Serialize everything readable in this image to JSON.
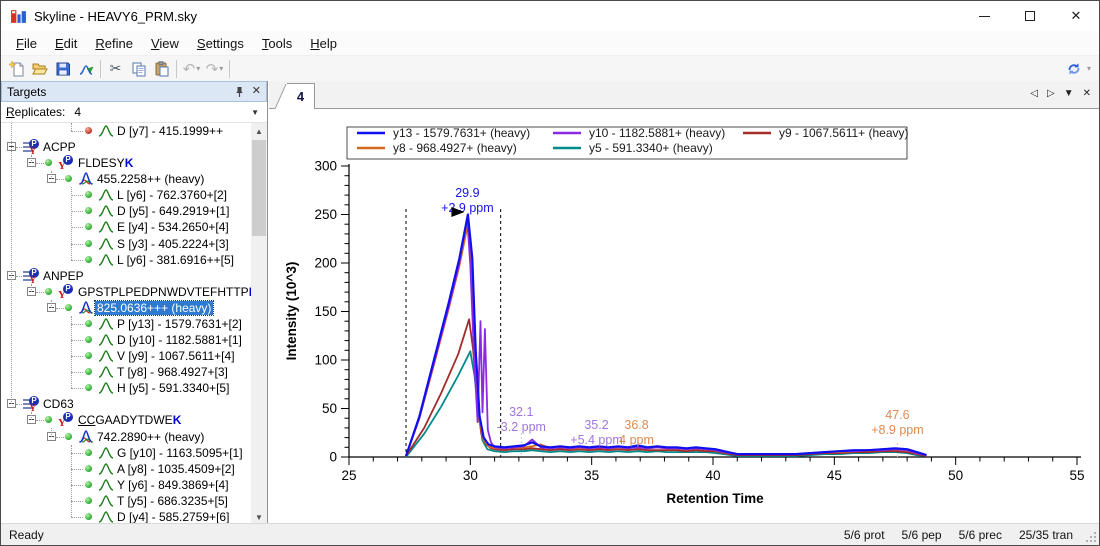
{
  "window": {
    "title": "Skyline - HEAVY6_PRM.sky"
  },
  "menu": {
    "items": [
      "File",
      "Edit",
      "Refine",
      "View",
      "Settings",
      "Tools",
      "Help"
    ]
  },
  "toolbar": {
    "buttons": [
      "new-document",
      "open-file",
      "save",
      "import-results",
      "sep",
      "cut",
      "copy",
      "paste",
      "sep",
      "undo",
      "redo",
      "sep"
    ],
    "right_button": "live-report"
  },
  "targets": {
    "title": "Targets",
    "replicates_label": "Replicates:",
    "replicates_value": "4",
    "tree": [
      {
        "level": 3,
        "type": "transition",
        "dot": "red",
        "label": "D [y7] - 415.1999++"
      },
      {
        "level": 0,
        "type": "protein",
        "label": "ACPP",
        "expander": true
      },
      {
        "level": 1,
        "type": "peptide",
        "dot": "green",
        "expander": true,
        "segments": [
          {
            "t": "FLDESY"
          },
          {
            "t": "K",
            "b": true
          }
        ]
      },
      {
        "level": 2,
        "type": "precursor",
        "dot": "green",
        "expander": true,
        "label": "455.2258++ (heavy)"
      },
      {
        "level": 3,
        "type": "transition",
        "dot": "green",
        "label": "L [y6] - 762.3760+[2]"
      },
      {
        "level": 3,
        "type": "transition",
        "dot": "green",
        "label": "D [y5] - 649.2919+[1]"
      },
      {
        "level": 3,
        "type": "transition",
        "dot": "green",
        "label": "E [y4] - 534.2650+[4]"
      },
      {
        "level": 3,
        "type": "transition",
        "dot": "green",
        "label": "S [y3] - 405.2224+[3]"
      },
      {
        "level": 3,
        "type": "transition",
        "dot": "green",
        "label": "L [y6] - 381.6916++[5]"
      },
      {
        "level": 0,
        "type": "protein",
        "label": "ANPEP",
        "expander": true
      },
      {
        "level": 1,
        "type": "peptide",
        "dot": "green",
        "expander": true,
        "segments": [
          {
            "t": "GPSTPLPEDPNWDVTEFHTTP"
          },
          {
            "t": "K",
            "b": true
          }
        ]
      },
      {
        "level": 2,
        "type": "precursor",
        "dot": "green",
        "expander": true,
        "label": "825.0636+++ (heavy)",
        "selected": true
      },
      {
        "level": 3,
        "type": "transition",
        "dot": "green",
        "label": "P [y13] - 1579.7631+[2]"
      },
      {
        "level": 3,
        "type": "transition",
        "dot": "green",
        "label": "D [y10] - 1182.5881+[1]"
      },
      {
        "level": 3,
        "type": "transition",
        "dot": "green",
        "label": "V [y9] - 1067.5611+[4]"
      },
      {
        "level": 3,
        "type": "transition",
        "dot": "green",
        "label": "T [y8] - 968.4927+[3]"
      },
      {
        "level": 3,
        "type": "transition",
        "dot": "green",
        "label": "H [y5] - 591.3340+[5]"
      },
      {
        "level": 0,
        "type": "protein",
        "label": "CD63",
        "expander": true
      },
      {
        "level": 1,
        "type": "peptide",
        "dot": "green",
        "expander": true,
        "segments": [
          {
            "t": "CC",
            "u": true
          },
          {
            "t": "GAADYTDWE"
          },
          {
            "t": "K",
            "b": true
          }
        ]
      },
      {
        "level": 2,
        "type": "precursor",
        "dot": "green",
        "expander": true,
        "label": "742.2890++ (heavy)"
      },
      {
        "level": 3,
        "type": "transition",
        "dot": "green",
        "label": "G [y10] - 1163.5095+[1]"
      },
      {
        "level": 3,
        "type": "transition",
        "dot": "green",
        "label": "A [y8] - 1035.4509+[2]"
      },
      {
        "level": 3,
        "type": "transition",
        "dot": "green",
        "label": "Y [y6] - 849.3869+[4]"
      },
      {
        "level": 3,
        "type": "transition",
        "dot": "green",
        "label": "T [y5] - 686.3235+[5]"
      },
      {
        "level": 3,
        "type": "transition",
        "dot": "green",
        "label": "D [y4] - 585.2759+[6]"
      }
    ]
  },
  "chart_tab": {
    "label": "4",
    "nav": [
      "◁",
      "▷",
      "▼",
      "✕"
    ]
  },
  "chart_data": {
    "type": "line",
    "title": "",
    "xlabel": "Retention Time",
    "ylabel": "Intensity (10^3)",
    "xlim": [
      25,
      55
    ],
    "ylim": [
      0,
      300
    ],
    "x_major_ticks": [
      25,
      30,
      35,
      40,
      45,
      50,
      55
    ],
    "x_minor_step": 1,
    "y_major_ticks": [
      0,
      50,
      100,
      150,
      200,
      250,
      300
    ],
    "y_minor_step": 10,
    "legend_position": "top",
    "peak_boundaries": [
      27.35,
      31.25
    ],
    "selected_peak_marker": {
      "x": 29.9
    },
    "annotations": [
      {
        "lines": [
          "29.9",
          "+2.9 ppm"
        ],
        "x": 29.88,
        "color": "#1414e8",
        "py": [
          88,
          103
        ],
        "arrow": true
      },
      {
        "lines": [
          "32.1",
          "-3.2 ppm"
        ],
        "x": 32.1,
        "color": "#9f76dd",
        "py": [
          307,
          322
        ]
      },
      {
        "lines": [
          "35.2",
          "+5.4 ppm"
        ],
        "x": 35.2,
        "color": "#9f76dd",
        "py": [
          320,
          335
        ]
      },
      {
        "lines": [
          "36.8",
          "4 ppm"
        ],
        "x": 36.85,
        "color": "#dd8a50",
        "py": [
          320,
          335
        ]
      },
      {
        "lines": [
          "47.6",
          "+8.9 ppm"
        ],
        "x": 47.6,
        "color": "#dd8a50",
        "py": [
          310,
          325
        ]
      }
    ],
    "noise_x": [
      31.0,
      31.4,
      31.8,
      32.2,
      32.55,
      32.9,
      33.3,
      33.7,
      34.1,
      34.5,
      34.9,
      35.3,
      35.7,
      36.1,
      36.5,
      36.9,
      37.3,
      37.7,
      38.1,
      38.5,
      38.9,
      39.3,
      39.7,
      40.1,
      40.45,
      41.0,
      41.6,
      42.2,
      42.8,
      43.4,
      44.0,
      44.6,
      45.2,
      45.8,
      46.4,
      47.0,
      47.5,
      48.0,
      48.4,
      48.8
    ],
    "series": [
      {
        "name": "y5 - 591.3340+ (heavy)",
        "color": "#008B8B",
        "width": 1.8,
        "peak": [
          [
            27.35,
            0
          ],
          [
            28.1,
            24
          ],
          [
            28.8,
            52
          ],
          [
            29.5,
            84
          ],
          [
            30.0,
            109
          ],
          [
            30.17,
            84
          ],
          [
            30.33,
            46
          ],
          [
            30.5,
            17
          ],
          [
            30.7,
            8
          ]
        ],
        "noise": [
          6,
          5,
          6,
          6,
          7,
          6,
          5,
          6,
          5,
          6,
          5,
          6,
          5,
          6,
          5,
          6,
          5,
          6,
          5,
          5,
          5,
          5,
          5,
          4,
          3,
          1,
          1,
          1,
          1,
          1,
          2,
          3,
          3,
          4,
          4,
          5,
          5,
          4,
          2,
          1
        ]
      },
      {
        "name": "y9 - 1067.5611+ (heavy)",
        "color": "#A52A2A",
        "width": 1.8,
        "peak": [
          [
            27.35,
            1
          ],
          [
            28.1,
            30
          ],
          [
            28.8,
            66
          ],
          [
            29.5,
            106
          ],
          [
            29.95,
            142
          ],
          [
            30.12,
            110
          ],
          [
            30.28,
            58
          ],
          [
            30.45,
            24
          ],
          [
            30.65,
            13
          ],
          [
            30.85,
            9
          ]
        ],
        "noise": [
          8,
          7,
          8,
          8,
          9,
          8,
          7,
          8,
          7,
          8,
          7,
          8,
          7,
          8,
          7,
          8,
          7,
          7,
          7,
          7,
          6,
          7,
          6,
          6,
          4,
          2,
          2,
          2,
          2,
          2,
          3,
          4,
          4,
          5,
          5,
          6,
          6,
          5,
          3,
          1
        ]
      },
      {
        "name": "y8 - 968.4927+ (heavy)",
        "color": "#D2691E",
        "width": 1.8,
        "peak": [
          [
            27.35,
            1
          ],
          [
            27.9,
            40
          ],
          [
            28.5,
            95
          ],
          [
            29.1,
            152
          ],
          [
            29.55,
            197
          ],
          [
            29.9,
            240
          ],
          [
            30.06,
            195
          ],
          [
            30.2,
            102
          ],
          [
            30.36,
            38
          ],
          [
            30.55,
            17
          ],
          [
            30.75,
            11
          ]
        ],
        "noise": [
          9,
          9,
          10,
          10,
          11,
          13,
          9,
          10,
          9,
          9,
          9,
          10,
          9,
          9,
          9,
          11,
          9,
          10,
          9,
          9,
          8,
          9,
          8,
          7,
          5,
          3,
          3,
          3,
          3,
          3,
          4,
          5,
          5,
          6,
          7,
          8,
          8,
          7,
          4,
          2
        ]
      },
      {
        "name": "y10 - 1182.5881+ (heavy)",
        "color": "#8A2BE2",
        "width": 1.8,
        "peak": [
          [
            27.35,
            1
          ],
          [
            27.9,
            40
          ],
          [
            28.5,
            97
          ],
          [
            29.1,
            154
          ],
          [
            29.55,
            200
          ],
          [
            29.87,
            246
          ],
          [
            30.0,
            198
          ],
          [
            30.15,
            105
          ],
          [
            30.3,
            36
          ],
          [
            30.42,
            140
          ],
          [
            30.5,
            46
          ],
          [
            30.6,
            132
          ],
          [
            30.72,
            28
          ],
          [
            30.85,
            15
          ]
        ],
        "noise": [
          10,
          9,
          10,
          11,
          18,
          10,
          9,
          10,
          9,
          10,
          9,
          10,
          9,
          10,
          9,
          10,
          9,
          10,
          9,
          9,
          8,
          9,
          8,
          7,
          5,
          3,
          3,
          3,
          3,
          3,
          4,
          5,
          6,
          6,
          7,
          7,
          8,
          7,
          4,
          2
        ]
      },
      {
        "name": "y13 - 1579.7631+ (heavy)",
        "color": "#1010EE",
        "width": 2.2,
        "peak": [
          [
            27.35,
            1
          ],
          [
            27.9,
            42
          ],
          [
            28.5,
            100
          ],
          [
            29.1,
            158
          ],
          [
            29.55,
            205
          ],
          [
            29.9,
            250
          ],
          [
            30.08,
            205
          ],
          [
            30.22,
            110
          ],
          [
            30.38,
            42
          ],
          [
            30.55,
            20
          ],
          [
            30.75,
            13
          ]
        ],
        "noise": [
          11,
          10,
          11,
          12,
          15,
          11,
          10,
          11,
          10,
          11,
          10,
          11,
          10,
          11,
          10,
          12,
          10,
          11,
          10,
          10,
          9,
          10,
          9,
          8,
          6,
          3,
          3,
          3,
          3,
          3,
          4,
          5,
          6,
          7,
          7,
          8,
          9,
          8,
          5,
          2
        ]
      }
    ],
    "legend_order": [
      4,
      3,
      1,
      2,
      0
    ]
  },
  "status": {
    "left": "Ready",
    "right": [
      "5/6 prot",
      "5/6 pep",
      "5/6 prec",
      "25/35 tran"
    ]
  }
}
